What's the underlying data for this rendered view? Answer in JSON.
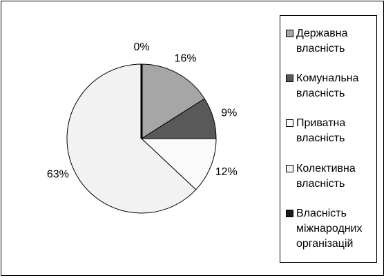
{
  "chart_data": {
    "type": "pie",
    "categories": [
      "Державна власність",
      "Комунальна власність",
      "Приватна власність",
      "Колективна власність",
      "Власність міжнародних організацій"
    ],
    "values": [
      16,
      9,
      12,
      63,
      0
    ],
    "value_labels": [
      "16%",
      "9%",
      "12%",
      "63%",
      "0%"
    ],
    "colors": [
      "#a6a6a6",
      "#595959",
      "#fafafa",
      "#f2f2f2",
      "#1a1a1a"
    ]
  }
}
